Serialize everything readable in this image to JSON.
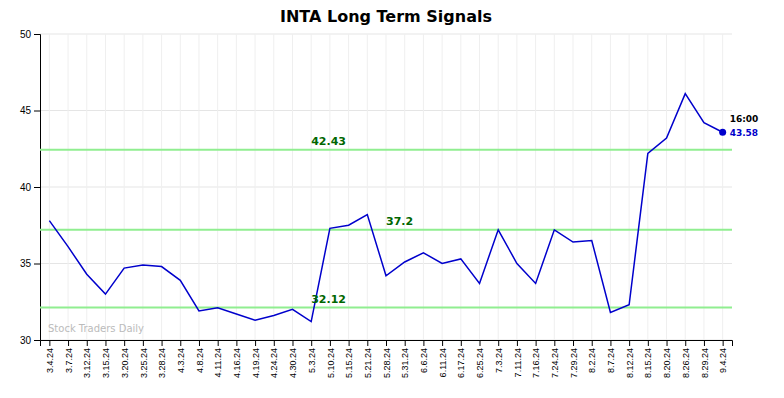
{
  "chart_data": {
    "type": "line",
    "title": "INTA Long Term Signals",
    "categories": [
      "3.4.24",
      "3.7.24",
      "3.12.24",
      "3.15.24",
      "3.20.24",
      "3.25.24",
      "3.28.24",
      "4.3.24",
      "4.8.24",
      "4.11.24",
      "4.16.24",
      "4.19.24",
      "4.24.24",
      "4.30.24",
      "5.3.24",
      "5.10.24",
      "5.15.24",
      "5.21.24",
      "5.28.24",
      "5.31.24",
      "6.6.24",
      "6.11.24",
      "6.17.24",
      "6.25.24",
      "7.3.24",
      "7.11.24",
      "7.16.24",
      "7.24.24",
      "7.29.24",
      "8.2.24",
      "8.7.24",
      "8.12.24",
      "8.15.24",
      "8.20.24",
      "8.26.24",
      "8.29.24",
      "9.4.24"
    ],
    "values": [
      37.8,
      36.1,
      34.3,
      33.0,
      34.7,
      34.9,
      34.8,
      33.9,
      31.9,
      32.1,
      31.7,
      31.3,
      31.6,
      32.0,
      31.2,
      37.3,
      37.5,
      38.2,
      34.2,
      35.1,
      35.7,
      35.0,
      35.3,
      33.7,
      37.2,
      35.0,
      33.7,
      37.2,
      36.4,
      36.5,
      31.8,
      32.3,
      42.2,
      43.2,
      46.1,
      44.2,
      43.58
    ],
    "color": "#0000CC",
    "hlines": [
      42.43,
      37.2,
      32.12
    ],
    "hline_color": "#90EE90",
    "annotation_color": "#006600",
    "annotations": [
      "16:00",
      "Stock Traders Daily"
    ],
    "ylim": [
      30,
      50
    ],
    "yticks": [
      30,
      35,
      40,
      45,
      50
    ],
    "grid": true
  }
}
